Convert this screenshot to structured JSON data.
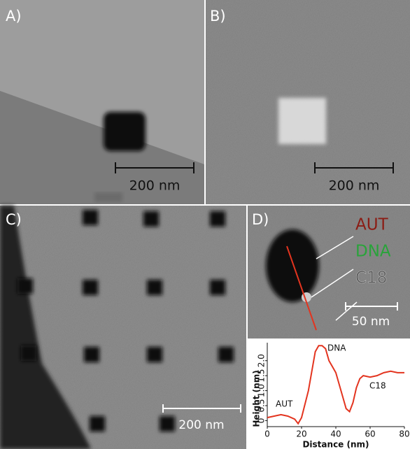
{
  "panels": {
    "a": {
      "label": "A)",
      "scale": "200 nm"
    },
    "b": {
      "label": "B)",
      "scale": "200 nm"
    },
    "c": {
      "label": "C)",
      "scale": "200 nm"
    },
    "d": {
      "label": "D)",
      "scale": "50 nm",
      "aut": "AUT",
      "dna": "DNA",
      "c18": "C18"
    }
  },
  "chart_data": {
    "type": "line",
    "xlabel": "Distance (nm)",
    "ylabel": "Height (nm)",
    "annotations": [
      "AUT",
      "DNA",
      "C18"
    ],
    "x": [
      0,
      4,
      8,
      12,
      16,
      18,
      20,
      24,
      28,
      30,
      32,
      34,
      36,
      38,
      40,
      42,
      44,
      46,
      48,
      50,
      52,
      54,
      56,
      60,
      64,
      68,
      72,
      76,
      80
    ],
    "series": [
      {
        "color": "#e3341f",
        "values": [
          0.1,
          0.15,
          0.2,
          0.15,
          0.05,
          -0.1,
          0.1,
          1.0,
          2.3,
          2.5,
          2.5,
          2.4,
          2.0,
          1.8,
          1.6,
          1.2,
          0.8,
          0.4,
          0.3,
          0.6,
          1.1,
          1.4,
          1.5,
          1.45,
          1.5,
          1.6,
          1.65,
          1.6,
          1.6
        ]
      }
    ],
    "xlim": [
      0,
      80
    ],
    "xticks": [
      0,
      20,
      40,
      60,
      80
    ],
    "ylim": [
      -0.2,
      2.6
    ],
    "yticks": [
      0,
      0.5,
      {
        "value": 1,
        "label": "1.0"
      },
      1.5,
      {
        "value": 2,
        "label": "2.0"
      }
    ]
  }
}
